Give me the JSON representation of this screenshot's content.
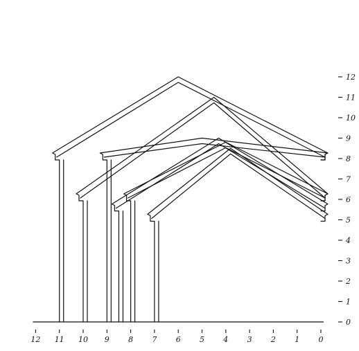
{
  "x_axis": {
    "labels": [
      "12",
      "11",
      "10",
      "9",
      "8",
      "7",
      "6",
      "5",
      "4",
      "3",
      "2",
      "1",
      "0"
    ]
  },
  "y_axis": {
    "labels": [
      "0",
      "1",
      "2",
      "3",
      "4",
      "5",
      "6",
      "7",
      "8",
      "9",
      "10",
      "11",
      "12"
    ]
  },
  "houses": [
    {
      "name": "house-outline-1",
      "left": 11.0,
      "eave": 8.0,
      "peak_x": 6.0,
      "peak": 12.0
    },
    {
      "name": "house-outline-2",
      "left": 10.0,
      "eave": 6.0,
      "peak_x": 4.5,
      "peak": 11.0
    },
    {
      "name": "house-outline-3",
      "left": 9.0,
      "eave": 8.0,
      "peak_x": 5.0,
      "peak": 9.0
    },
    {
      "name": "house-outline-4",
      "left": 8.5,
      "eave": 5.5,
      "peak_x": 4.3,
      "peak": 9.0
    },
    {
      "name": "house-outline-5",
      "left": 8.0,
      "eave": 6.0,
      "peak_x": 4.0,
      "peak": 8.8
    },
    {
      "name": "house-outline-6",
      "left": 7.0,
      "eave": 5.0,
      "peak_x": 3.8,
      "peak": 8.5
    }
  ]
}
